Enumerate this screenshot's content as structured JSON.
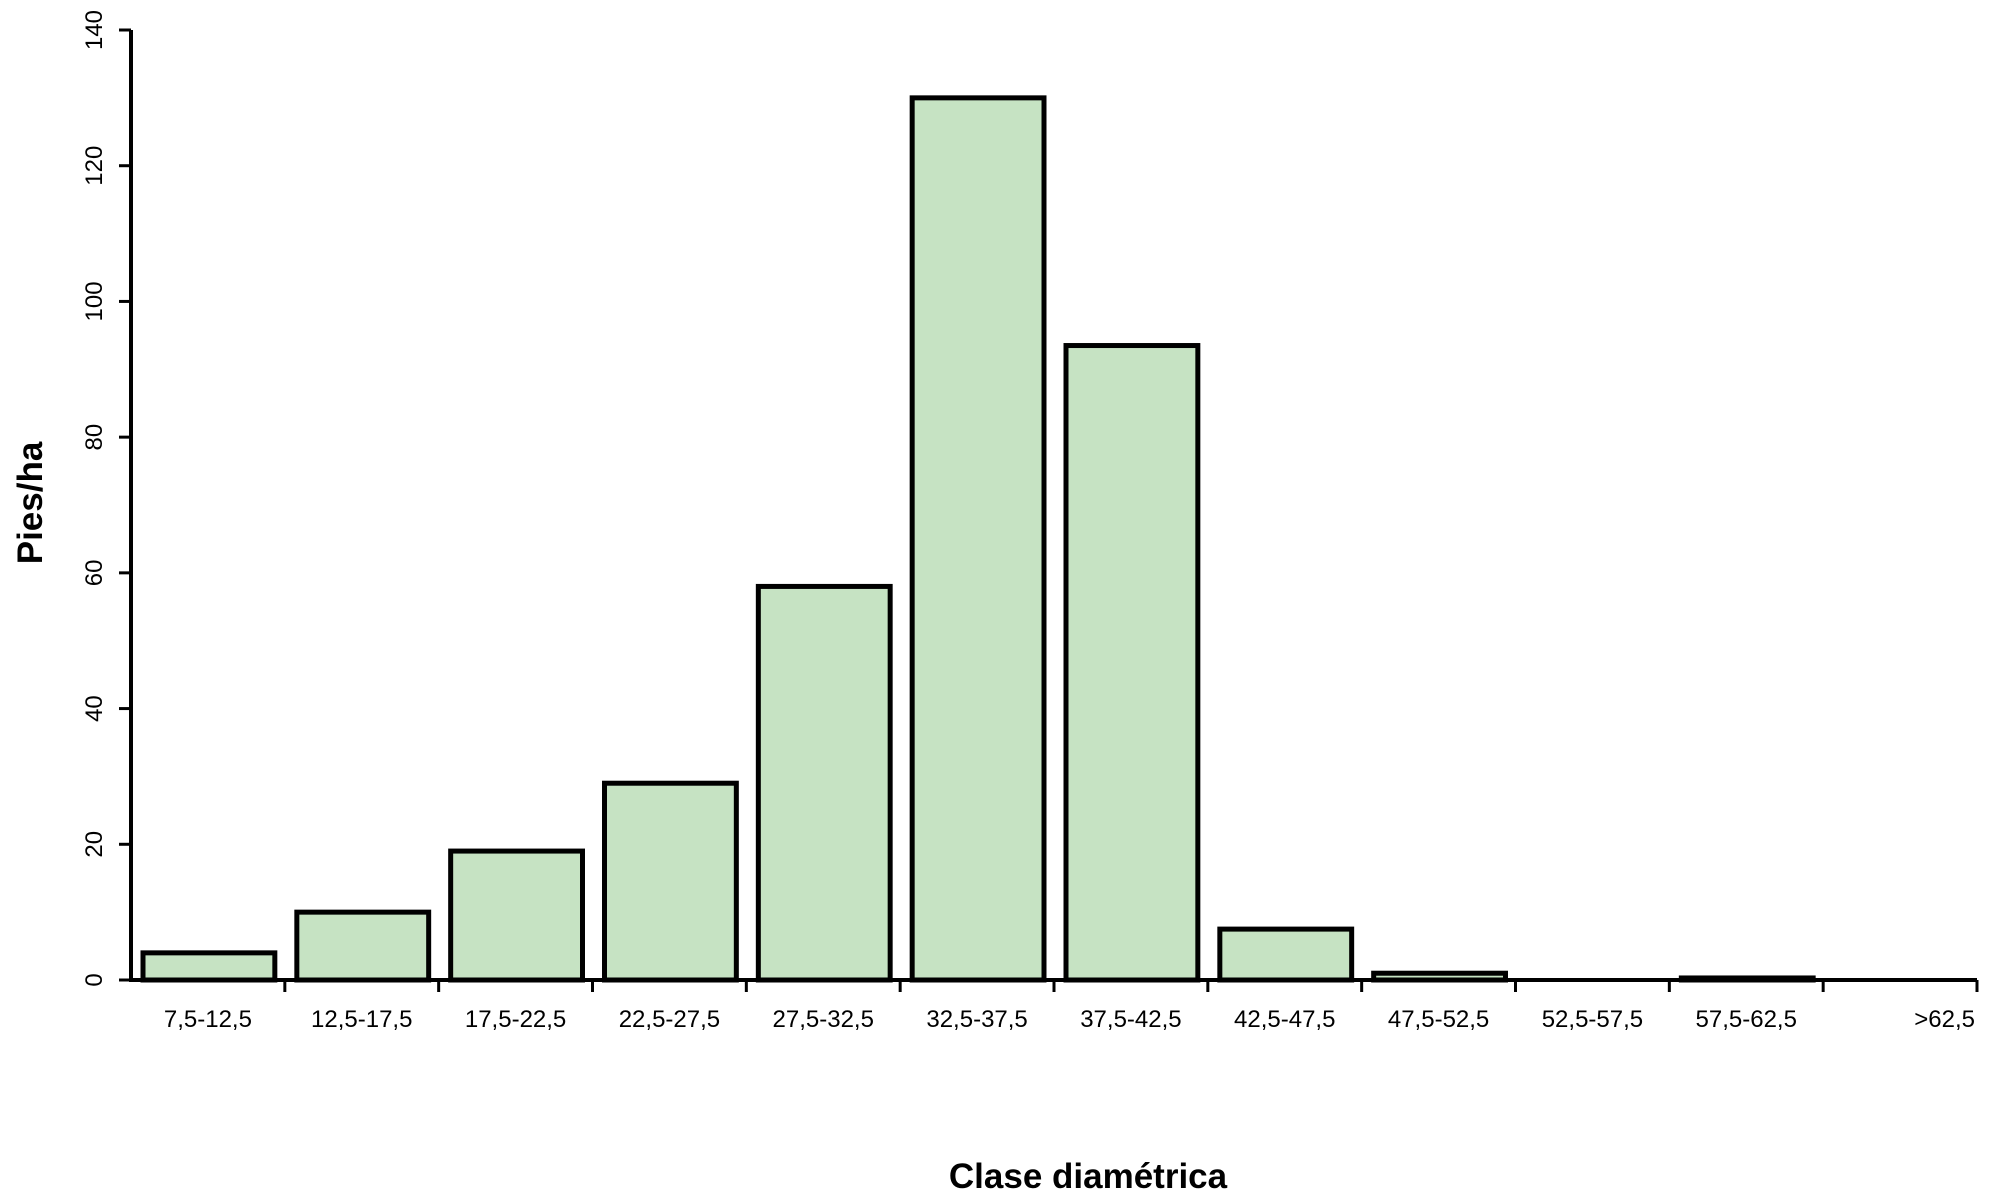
{
  "chart_data": {
    "type": "bar",
    "title": "",
    "xlabel": "Clase diamétrica",
    "ylabel": "Pies/ha",
    "categories": [
      "7,5-12,5",
      "12,5-17,5",
      "17,5-22,5",
      "22,5-27,5",
      "27,5-32,5",
      "32,5-37,5",
      "37,5-42,5",
      "42,5-47,5",
      "47,5-52,5",
      "52,5-57,5",
      "57,5-62,5",
      ">62,5"
    ],
    "values": [
      4,
      10,
      19,
      29,
      58,
      130,
      93.5,
      7.5,
      1,
      0,
      0.3,
      0
    ],
    "ylim": [
      0,
      140
    ],
    "yticks": [
      0,
      20,
      40,
      60,
      80,
      100,
      120,
      140
    ],
    "grid": false,
    "legend": "none",
    "bar_color": "#c6e3c3",
    "bar_edge_color": "#000000"
  }
}
